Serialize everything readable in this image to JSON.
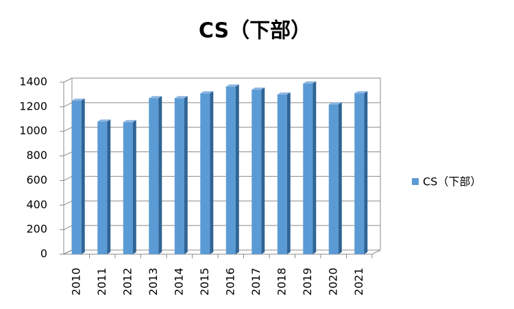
{
  "chart_data": {
    "type": "bar",
    "title": "CS（下部）",
    "categories": [
      "2010",
      "2011",
      "2012",
      "2013",
      "2014",
      "2015",
      "2016",
      "2017",
      "2018",
      "2019",
      "2020",
      "2021"
    ],
    "series": [
      {
        "name": "CS（下部）",
        "color": "#5b9bd5",
        "values": [
          1250,
          1080,
          1075,
          1270,
          1270,
          1310,
          1365,
          1340,
          1300,
          1390,
          1220,
          1310
        ]
      }
    ],
    "ylim": [
      0,
      1400
    ],
    "yticks": [
      0,
      200,
      400,
      600,
      800,
      1000,
      1200,
      1400
    ],
    "grid": true,
    "legend": "right"
  }
}
